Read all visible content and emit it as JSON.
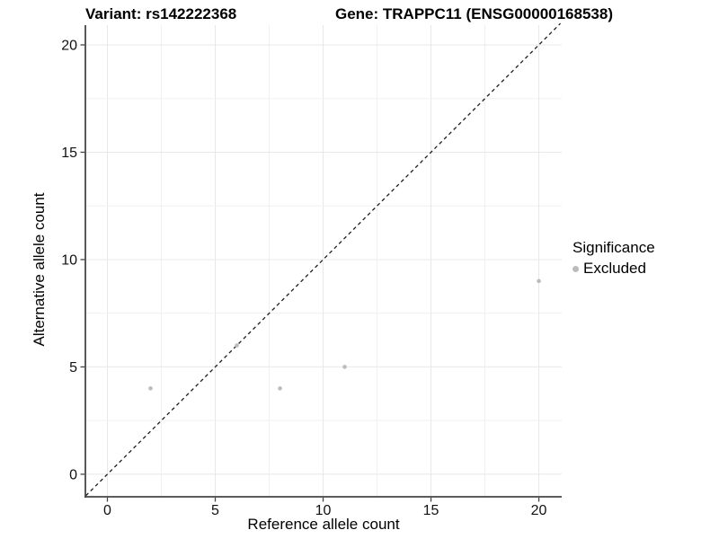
{
  "header": {
    "left_title": "Variant: rs142222368",
    "right_title": "Gene: TRAPPC11 (ENSG00000168538)"
  },
  "chart_data": {
    "type": "scatter",
    "xlabel": "Reference allele count",
    "ylabel": "Alternative allele count",
    "x_ticks": [
      0,
      5,
      10,
      15,
      20
    ],
    "y_ticks": [
      0,
      5,
      10,
      15,
      20
    ],
    "grid": true,
    "grid_minor_step": 2.5,
    "xlim": [
      -1.02,
      21.06
    ],
    "ylim": [
      -1.05,
      20.92
    ],
    "series": [
      {
        "name": "Excluded",
        "color": "#bcbcbc",
        "points": [
          [
            2,
            4
          ],
          [
            6,
            6
          ],
          [
            8,
            4
          ],
          [
            11,
            5
          ],
          [
            20,
            9
          ]
        ]
      }
    ],
    "reference_line": {
      "type": "identity",
      "style": "dashed",
      "from": [
        -1,
        -1
      ],
      "to": [
        21,
        21
      ]
    },
    "legend": {
      "title": "Significance",
      "position": "right",
      "items": [
        {
          "label": "Excluded",
          "color": "#bcbcbc"
        }
      ]
    }
  },
  "colors": {
    "background": "#ffffff",
    "point": "#bcbcbc",
    "axis": "#454545",
    "tick_text": "#111111",
    "grid_major": "#e8e8e8",
    "grid_minor": "#f0f0f0",
    "dashed_line": "#1c1c1c"
  }
}
